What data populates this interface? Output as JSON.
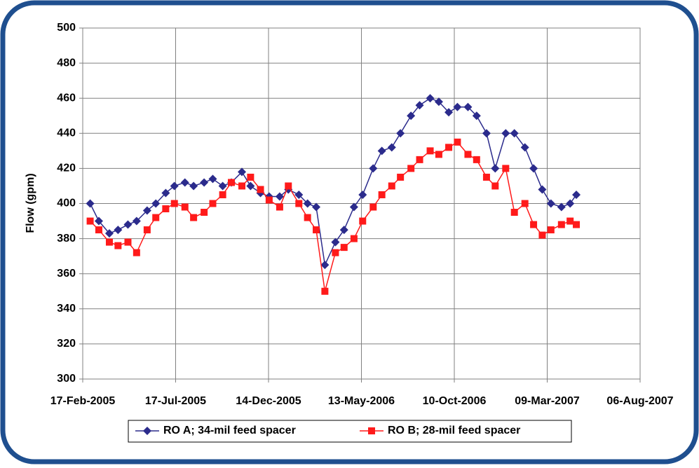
{
  "chart_data": {
    "type": "line",
    "ylabel": "Flow (gpm)",
    "x": [
      "2005-03-01",
      "2005-03-15",
      "2005-04-01",
      "2005-04-15",
      "2005-05-01",
      "2005-05-15",
      "2005-06-01",
      "2005-06-15",
      "2005-07-01",
      "2005-07-15",
      "2005-08-01",
      "2005-08-15",
      "2005-09-01",
      "2005-09-15",
      "2005-10-01",
      "2005-10-15",
      "2005-11-01",
      "2005-11-15",
      "2005-12-01",
      "2005-12-15",
      "2006-01-01",
      "2006-01-15",
      "2006-02-01",
      "2006-02-15",
      "2006-03-01",
      "2006-03-15",
      "2006-04-01",
      "2006-04-15",
      "2006-05-01",
      "2006-05-15",
      "2006-06-01",
      "2006-06-15",
      "2006-07-01",
      "2006-07-15",
      "2006-08-01",
      "2006-08-15",
      "2006-09-01",
      "2006-09-15",
      "2006-10-01",
      "2006-10-15",
      "2006-11-01",
      "2006-11-15",
      "2006-12-01",
      "2006-12-15",
      "2007-01-01",
      "2007-01-15",
      "2007-02-01",
      "2007-02-15",
      "2007-03-01",
      "2007-03-15",
      "2007-04-01",
      "2007-04-15",
      "2007-04-25"
    ],
    "series": [
      {
        "name": "RO A; 34-mil feed spacer",
        "color": "#2b2b8c",
        "marker": "diamond",
        "values": [
          400,
          390,
          383,
          385,
          388,
          390,
          396,
          400,
          406,
          410,
          412,
          410,
          412,
          414,
          410,
          412,
          418,
          410,
          406,
          404,
          404,
          408,
          405,
          400,
          398,
          365,
          378,
          385,
          398,
          405,
          420,
          430,
          432,
          440,
          450,
          456,
          460,
          458,
          452,
          455,
          455,
          450,
          440,
          420,
          440,
          440,
          432,
          420,
          408,
          400,
          398,
          400,
          405
        ]
      },
      {
        "name": "RO B; 28-mil feed spacer",
        "color": "#ff1a1a",
        "marker": "square",
        "values": [
          390,
          385,
          378,
          376,
          378,
          372,
          385,
          392,
          397,
          400,
          398,
          392,
          395,
          400,
          405,
          412,
          410,
          415,
          408,
          402,
          398,
          410,
          400,
          392,
          385,
          350,
          372,
          375,
          380,
          390,
          398,
          405,
          410,
          415,
          420,
          425,
          430,
          428,
          432,
          435,
          428,
          425,
          415,
          410,
          420,
          395,
          400,
          388,
          382,
          385,
          388,
          390,
          388
        ]
      }
    ],
    "xlim": [
      "2005-02-17",
      "2007-08-06"
    ],
    "xticks": [
      {
        "value": "2005-02-17",
        "label": "17-Feb-2005"
      },
      {
        "value": "2005-07-17",
        "label": "17-Jul-2005"
      },
      {
        "value": "2005-12-14",
        "label": "14-Dec-2005"
      },
      {
        "value": "2006-05-13",
        "label": "13-May-2006"
      },
      {
        "value": "2006-10-10",
        "label": "10-Oct-2006"
      },
      {
        "value": "2007-03-09",
        "label": "09-Mar-2007"
      },
      {
        "value": "2007-08-06",
        "label": "06-Aug-2007"
      }
    ],
    "ylim": [
      300,
      500
    ],
    "yticks": [
      300,
      320,
      340,
      360,
      380,
      400,
      420,
      440,
      460,
      480,
      500
    ],
    "grid": true,
    "legend": "bottom"
  }
}
